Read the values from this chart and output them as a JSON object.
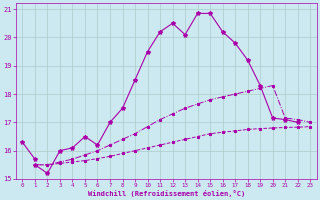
{
  "xlabel": "Windchill (Refroidissement éolien,°C)",
  "bg_color": "#cce8f0",
  "grid_color": "#aacccc",
  "line_color": "#aa00aa",
  "xlim": [
    -0.5,
    23.5
  ],
  "ylim": [
    15.0,
    21.2
  ],
  "xticks": [
    0,
    1,
    2,
    3,
    4,
    5,
    6,
    7,
    8,
    9,
    10,
    11,
    12,
    13,
    14,
    15,
    16,
    17,
    18,
    19,
    20,
    21,
    22,
    23
  ],
  "yticks": [
    15,
    16,
    17,
    18,
    19,
    20,
    21
  ],
  "series": [
    {
      "x": [
        0,
        1
      ],
      "y": [
        16.3,
        15.7
      ]
    },
    {
      "x": [
        1,
        2,
        3,
        4,
        5,
        6,
        7,
        8,
        9,
        10,
        11,
        12,
        13,
        14,
        15,
        16,
        17,
        18,
        19,
        20,
        21,
        22
      ],
      "y": [
        15.5,
        15.2,
        16.0,
        16.1,
        16.5,
        16.2,
        17.0,
        17.5,
        18.5,
        19.5,
        20.2,
        20.5,
        20.1,
        20.85,
        20.85,
        20.2,
        19.8,
        19.2,
        18.3,
        17.15,
        17.1,
        17.0
      ]
    },
    {
      "x": [
        1,
        2,
        3,
        4,
        5,
        6,
        7,
        8,
        9,
        10,
        11,
        12,
        13,
        14,
        15,
        16,
        17,
        18,
        19,
        20,
        21,
        22,
        23
      ],
      "y": [
        15.5,
        15.5,
        15.55,
        15.6,
        15.65,
        15.72,
        15.8,
        15.9,
        16.0,
        16.1,
        16.2,
        16.3,
        16.4,
        16.5,
        16.6,
        16.65,
        16.7,
        16.75,
        16.78,
        16.8,
        16.82,
        16.83,
        16.85
      ]
    },
    {
      "x": [
        1,
        2,
        3,
        4,
        5,
        6,
        7,
        8,
        9,
        10,
        11,
        12,
        13,
        14,
        15,
        16,
        17,
        18,
        19,
        20,
        21,
        22,
        23
      ],
      "y": [
        15.5,
        15.5,
        15.6,
        15.7,
        15.85,
        16.0,
        16.2,
        16.4,
        16.6,
        16.85,
        17.1,
        17.3,
        17.5,
        17.65,
        17.8,
        17.9,
        18.0,
        18.1,
        18.2,
        18.3,
        17.15,
        17.1,
        17.0
      ]
    }
  ]
}
